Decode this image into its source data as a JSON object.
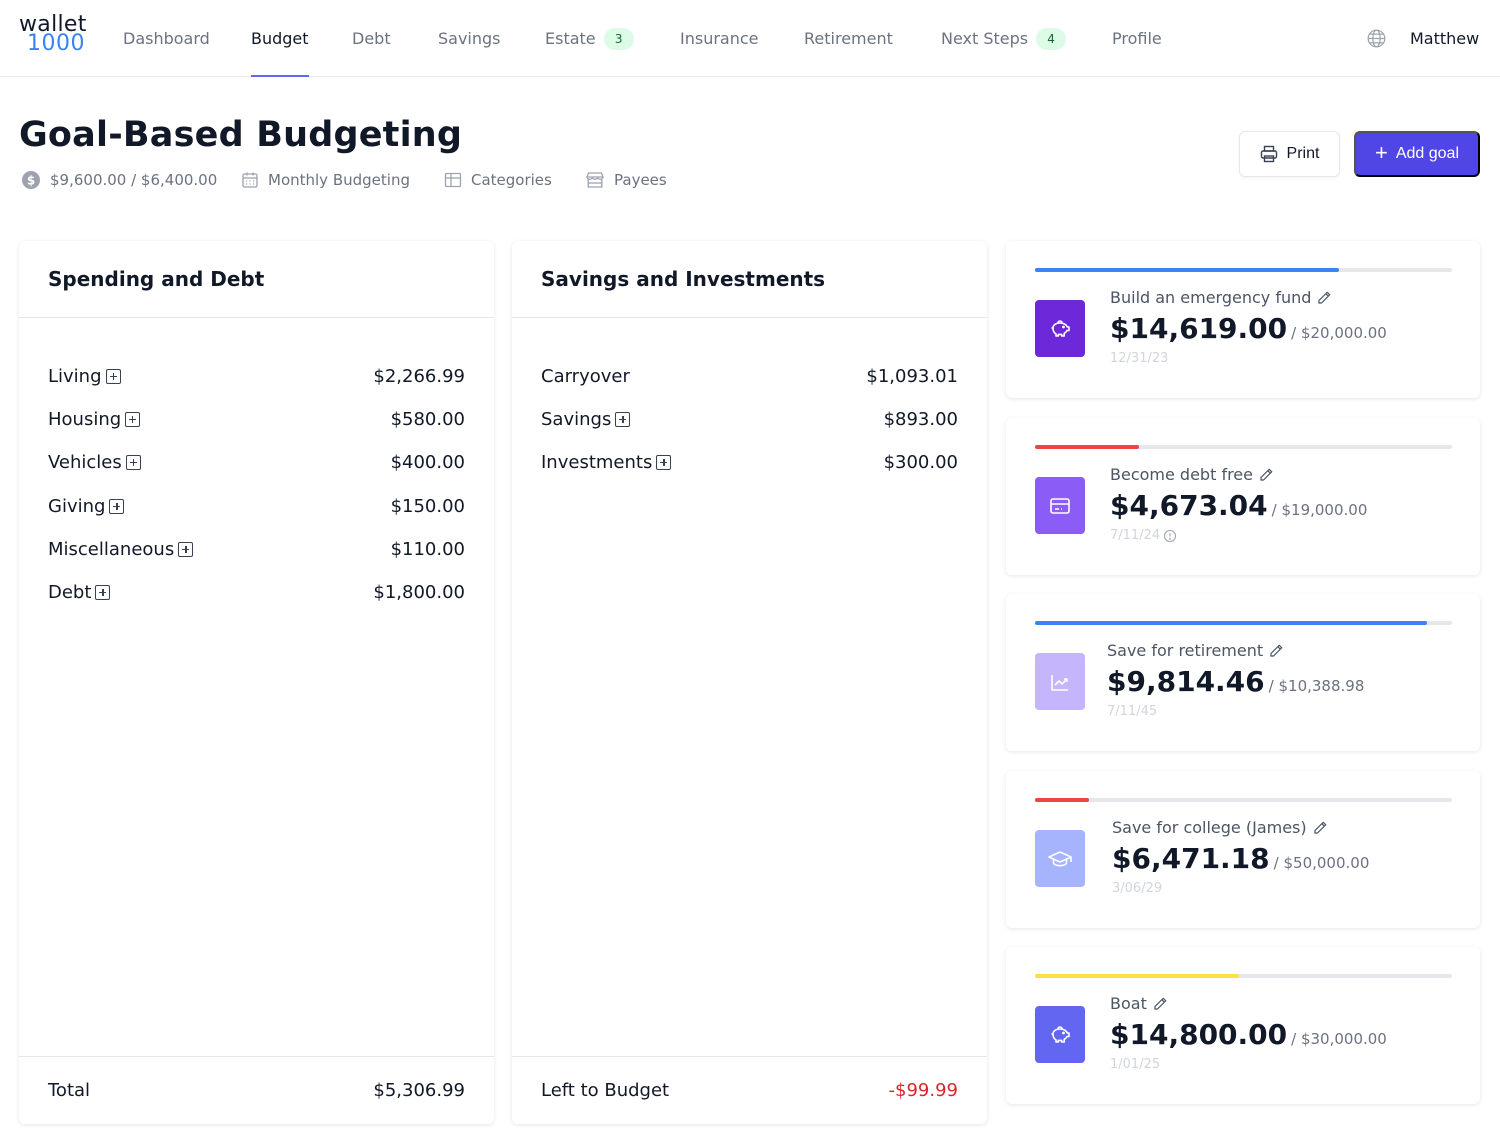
{
  "nav": {
    "logo_top": "wallet",
    "logo_bottom": "1000",
    "items": [
      {
        "label": "Dashboard"
      },
      {
        "label": "Budget"
      },
      {
        "label": "Debt"
      },
      {
        "label": "Savings"
      },
      {
        "label": "Estate",
        "badge": "3"
      },
      {
        "label": "Insurance"
      },
      {
        "label": "Retirement"
      },
      {
        "label": "Next Steps",
        "badge": "4"
      },
      {
        "label": "Profile"
      }
    ],
    "active": "Budget",
    "user": "Matthew",
    "globe_icon": "globe-icon"
  },
  "header": {
    "title": "Goal-Based Budgeting",
    "income": "$9,600.00 / $6,400.00",
    "budget_period": "Monthly Budgeting",
    "categories_link": "Categories",
    "payees_link": "Payees",
    "print_label": "Print",
    "add_goal_label": "Add goal"
  },
  "spending": {
    "title": "Spending and Debt",
    "rows": [
      {
        "label": "Living",
        "amount": "$2,266.99"
      },
      {
        "label": "Housing",
        "amount": "$580.00"
      },
      {
        "label": "Vehicles",
        "amount": "$400.00"
      },
      {
        "label": "Giving",
        "amount": "$150.00"
      },
      {
        "label": "Miscellaneous",
        "amount": "$110.00"
      },
      {
        "label": "Debt",
        "amount": "$1,800.00"
      }
    ],
    "total_label": "Total",
    "total_amount": "$5,306.99"
  },
  "savings": {
    "title": "Savings and Investments",
    "rows": [
      {
        "label": "Carryover",
        "amount": "$1,093.01"
      },
      {
        "label": "Savings",
        "amount": "$893.00"
      },
      {
        "label": "Investments",
        "amount": "$300.00"
      }
    ],
    "left_label": "Left to Budget",
    "left_amount": "-$99.99"
  },
  "goals": [
    {
      "name": "Build an emergency fund",
      "amount": "$14,619.00",
      "target": "/ $20,000.00",
      "date": "12/31/23",
      "progress": 0.73,
      "bar_color": "#3b82f6",
      "icon": "piggy-bank-icon",
      "icon_bg": "#6d28d9"
    },
    {
      "name": "Become debt free",
      "amount": "$4,673.04",
      "target": "/ $19,000.00",
      "date": "7/11/24",
      "progress": 0.25,
      "bar_color": "#ef4444",
      "icon": "credit-card-icon",
      "icon_bg": "#8b5cf6"
    },
    {
      "name": "Save for retirement",
      "amount": "$9,814.46",
      "target": "/ $10,388.98",
      "date": "7/11/45",
      "progress": 0.94,
      "bar_color": "#3b82f6",
      "icon": "chart-up-icon",
      "icon_bg": "#c4b5fd"
    },
    {
      "name": "Save for college (James)",
      "amount": "$6,471.18",
      "target": "/ $50,000.00",
      "date": "3/06/29",
      "progress": 0.13,
      "bar_color": "#ef4444",
      "icon": "graduation-cap-icon",
      "icon_bg": "#a5b4fc"
    },
    {
      "name": "Boat",
      "amount": "$14,800.00",
      "target": "/ $30,000.00",
      "date": "1/01/25",
      "progress": 0.49,
      "bar_color": "#fde047",
      "icon": "piggy-bank-icon",
      "icon_bg": "#6366f1"
    }
  ]
}
